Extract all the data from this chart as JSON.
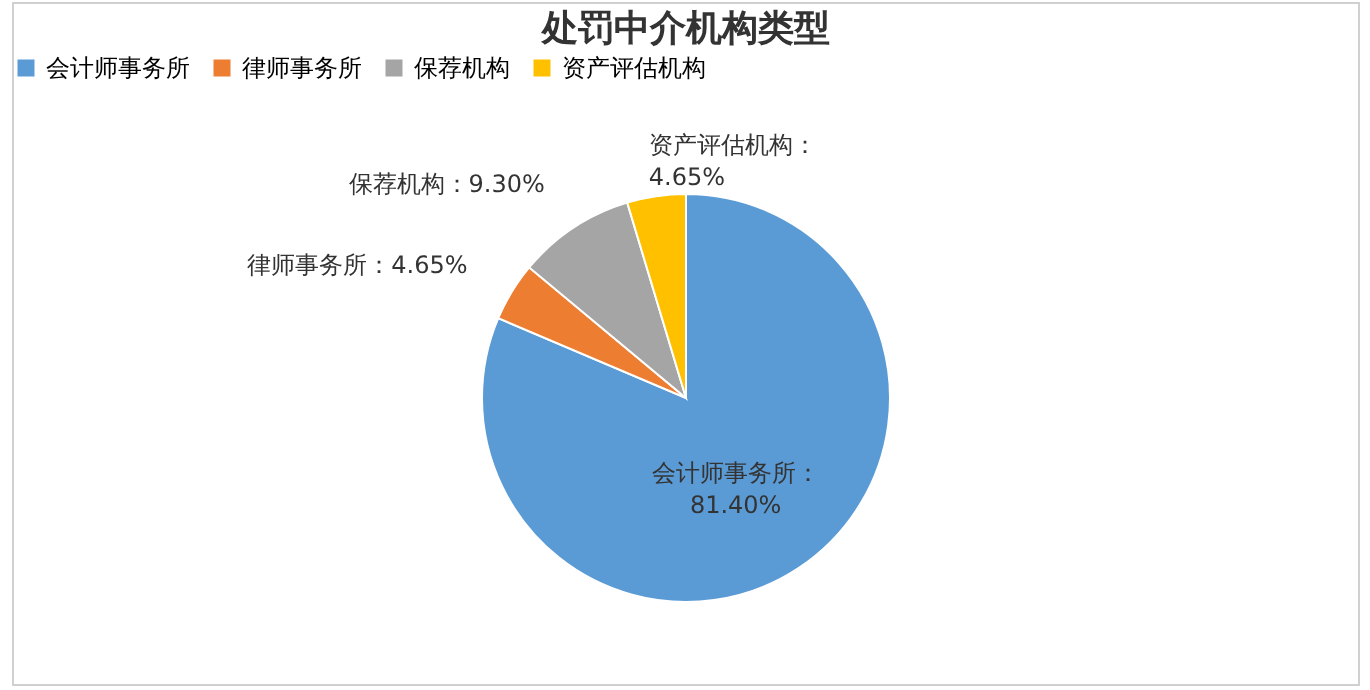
{
  "chart_data": {
    "type": "pie",
    "title": "处罚中介机构类型",
    "categories": [
      "会计师事务所",
      "律师事务所",
      "保荐机构",
      "资产评估机构"
    ],
    "values": [
      81.4,
      4.65,
      9.3,
      4.65
    ],
    "value_labels": [
      "会计师事务所：\n81.40%",
      "律师事务所：4.65%",
      "保荐机构：9.30%",
      "资产评估机构：\n4.65%"
    ],
    "colors": [
      "#5b9bd5",
      "#ed7d31",
      "#a5a5a5",
      "#ffc000"
    ],
    "legend": "top"
  }
}
